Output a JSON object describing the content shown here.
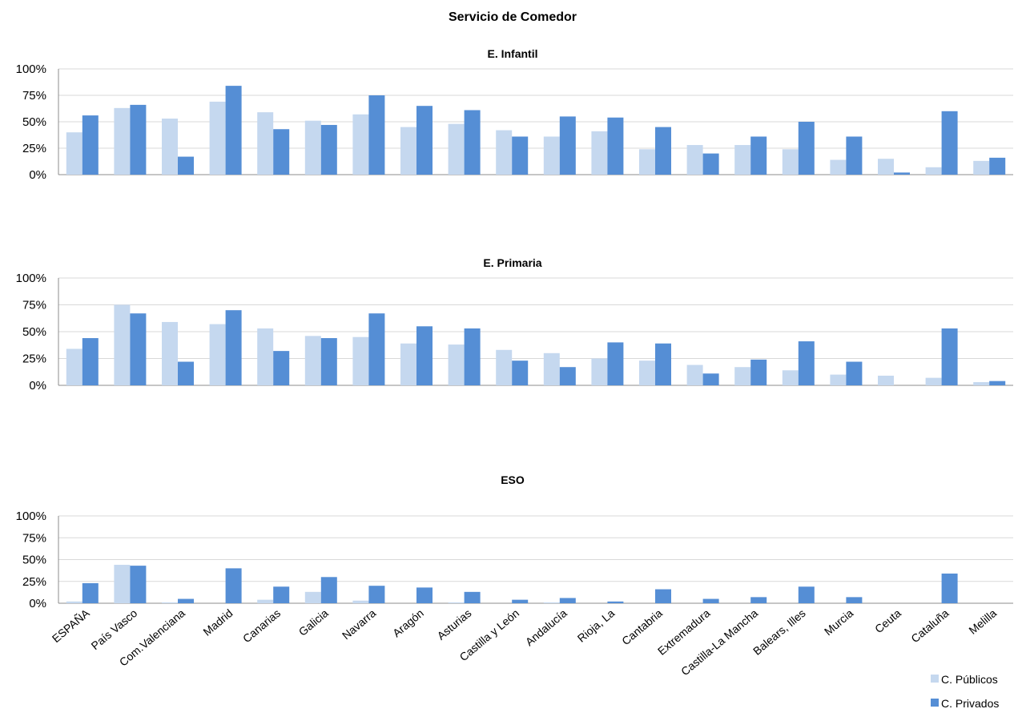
{
  "chart_data": {
    "type": "bar",
    "title": "Servicio de Comedor",
    "categories": [
      "ESPAÑA",
      "País Vasco",
      "Com.Valenciana",
      "Madrid",
      "Canarias",
      "Galicia",
      "Navarra",
      "Aragón",
      "Asturias",
      "Castilla y León",
      "Andalucía",
      "Rioja, La",
      "Cantabria",
      "Extremadura",
      "Castilla-La Mancha",
      "Balears, Illes",
      "Murcia",
      "Ceuta",
      "Cataluña",
      "Melilla"
    ],
    "legend": {
      "placement": "bottom-right",
      "entries": [
        {
          "name": "C. Públicos",
          "color": "#c5d8ef"
        },
        {
          "name": "C. Privados",
          "color": "#558ed5"
        }
      ]
    },
    "yticks": [
      "0%",
      "25%",
      "50%",
      "75%",
      "100%"
    ],
    "ylim": [
      0,
      100
    ],
    "grid": true,
    "panels": [
      {
        "title": "E. Infantil",
        "series": [
          {
            "name": "C. Públicos",
            "values": [
              40,
              63,
              53,
              69,
              59,
              51,
              57,
              45,
              48,
              42,
              36,
              41,
              24,
              28,
              28,
              24,
              14,
              15,
              7,
              13
            ]
          },
          {
            "name": "C. Privados",
            "values": [
              56,
              66,
              17,
              84,
              43,
              47,
              75,
              65,
              61,
              36,
              55,
              54,
              45,
              20,
              36,
              50,
              36,
              2,
              60,
              16
            ]
          }
        ]
      },
      {
        "title": "E. Primaria",
        "series": [
          {
            "name": "C. Públicos",
            "values": [
              34,
              75,
              59,
              57,
              53,
              46,
              45,
              39,
              38,
              33,
              30,
              25,
              23,
              19,
              17,
              14,
              10,
              9,
              7,
              3
            ]
          },
          {
            "name": "C. Privados",
            "values": [
              44,
              67,
              22,
              70,
              32,
              44,
              67,
              55,
              53,
              23,
              17,
              40,
              39,
              11,
              24,
              41,
              22,
              0,
              53,
              4
            ]
          }
        ]
      },
      {
        "title": "ESO",
        "series": [
          {
            "name": "C. Públicos",
            "values": [
              2,
              44,
              1,
              0,
              4,
              13,
              3,
              0,
              1,
              0,
              1,
              0,
              0,
              0,
              0,
              0,
              0,
              0,
              0,
              0
            ]
          },
          {
            "name": "C. Privados",
            "values": [
              23,
              43,
              5,
              40,
              19,
              30,
              20,
              18,
              13,
              4,
              6,
              2,
              16,
              5,
              7,
              19,
              7,
              0,
              34,
              0
            ]
          }
        ]
      }
    ]
  }
}
